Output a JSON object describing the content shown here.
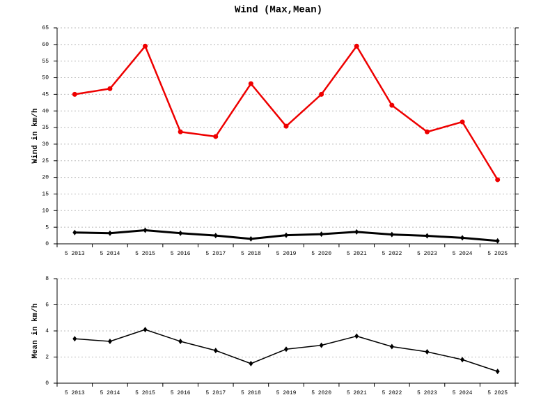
{
  "chart_data": [
    {
      "type": "line",
      "title": "Wind (Max,Mean)",
      "y_label": "Wind in km/h",
      "categories": [
        "5 2013",
        "5 2014",
        "5 2015",
        "5 2016",
        "5 2017",
        "5 2018",
        "5 2019",
        "5 2020",
        "5 2021",
        "5 2022",
        "5 2023",
        "5 2024",
        "5 2025"
      ],
      "series": [
        {
          "color": "#ee0000",
          "marker": "circle",
          "width": 2.5,
          "values": [
            45,
            46.7,
            59.5,
            33.7,
            32.3,
            48.2,
            35.4,
            45,
            59.5,
            41.7,
            33.7,
            36.7,
            19.3
          ]
        },
        {
          "color": "#000000",
          "marker": "diamond",
          "width": 3,
          "values": [
            3.4,
            3.2,
            4.1,
            3.2,
            2.5,
            1.5,
            2.6,
            2.9,
            3.6,
            2.8,
            2.4,
            1.8,
            0.9
          ]
        }
      ],
      "ylim": [
        0,
        65
      ],
      "yticks": [
        0,
        5,
        10,
        15,
        20,
        25,
        30,
        35,
        40,
        45,
        50,
        55,
        60,
        65
      ],
      "grid": true
    },
    {
      "type": "line",
      "y_label": "Mean in km/h",
      "categories": [
        "5 2013",
        "5 2014",
        "5 2015",
        "5 2016",
        "5 2017",
        "5 2018",
        "5 2019",
        "5 2020",
        "5 2021",
        "5 2022",
        "5 2023",
        "5 2024",
        "5 2025"
      ],
      "series": [
        {
          "color": "#000000",
          "marker": "diamond",
          "width": 1.5,
          "values": [
            3.4,
            3.2,
            4.1,
            3.2,
            2.5,
            1.5,
            2.6,
            2.9,
            3.6,
            2.8,
            2.4,
            1.8,
            0.9
          ]
        }
      ],
      "ylim": [
        0,
        8
      ],
      "yticks": [
        0,
        2,
        4,
        6,
        8
      ],
      "grid": true
    }
  ]
}
